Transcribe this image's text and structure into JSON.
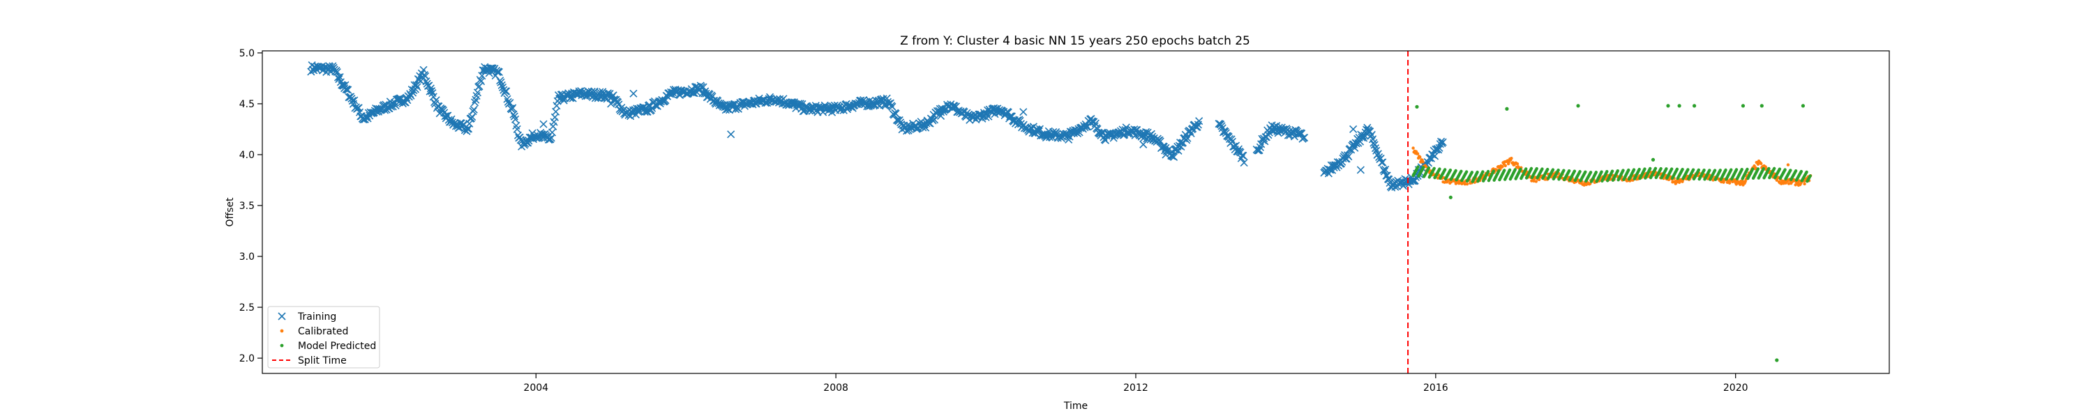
{
  "chart_data": {
    "type": "scatter",
    "title": "Z from Y: Cluster 4 basic NN 15 years 250 epochs batch 25",
    "xlabel": "Time",
    "ylabel": "Offset",
    "xlim": [
      2000.35,
      2022.05
    ],
    "ylim": [
      1.85,
      5.02
    ],
    "x_ticks": [
      2004,
      2008,
      2012,
      2016,
      2020
    ],
    "x_tick_labels": [
      "2004",
      "2008",
      "2012",
      "2016",
      "2020"
    ],
    "y_ticks": [
      2.0,
      2.5,
      3.0,
      3.5,
      4.0,
      4.5,
      5.0
    ],
    "y_tick_labels": [
      "2.0",
      "2.5",
      "3.0",
      "3.5",
      "4.0",
      "4.5",
      "5.0"
    ],
    "grid": false,
    "legend_position": "lower-left",
    "split_time": 2015.63,
    "series": [
      {
        "name": "Training",
        "marker": "x",
        "color": "#1f77b4",
        "trend": [
          [
            2001.0,
            4.85
          ],
          [
            2001.3,
            4.84
          ],
          [
            2001.5,
            4.6
          ],
          [
            2001.7,
            4.35
          ],
          [
            2001.9,
            4.44
          ],
          [
            2002.3,
            4.56
          ],
          [
            2002.5,
            4.8
          ],
          [
            2002.7,
            4.45
          ],
          [
            2002.9,
            4.3
          ],
          [
            2003.1,
            4.25
          ],
          [
            2003.3,
            4.85
          ],
          [
            2003.5,
            4.8
          ],
          [
            2003.7,
            4.4
          ],
          [
            2003.8,
            4.1
          ],
          [
            2004.0,
            4.2
          ],
          [
            2004.2,
            4.15
          ],
          [
            2004.3,
            4.55
          ],
          [
            2004.6,
            4.6
          ],
          [
            2005.0,
            4.58
          ],
          [
            2005.2,
            4.4
          ],
          [
            2005.5,
            4.45
          ],
          [
            2005.8,
            4.6
          ],
          [
            2006.2,
            4.65
          ],
          [
            2006.5,
            4.45
          ],
          [
            2006.8,
            4.5
          ],
          [
            2007.2,
            4.55
          ],
          [
            2007.6,
            4.45
          ],
          [
            2008.0,
            4.45
          ],
          [
            2008.3,
            4.5
          ],
          [
            2008.7,
            4.52
          ],
          [
            2008.9,
            4.25
          ],
          [
            2009.2,
            4.3
          ],
          [
            2009.5,
            4.5
          ],
          [
            2009.8,
            4.35
          ],
          [
            2010.2,
            4.45
          ],
          [
            2010.5,
            4.28
          ],
          [
            2010.8,
            4.2
          ],
          [
            2011.1,
            4.18
          ],
          [
            2011.4,
            4.33
          ],
          [
            2011.6,
            4.17
          ],
          [
            2011.9,
            4.24
          ],
          [
            2012.2,
            4.18
          ],
          [
            2012.5,
            4.0
          ],
          [
            2012.8,
            4.3
          ],
          [
            2013.1,
            4.3
          ],
          [
            2013.5,
            3.9
          ],
          [
            2013.8,
            4.26
          ],
          [
            2014.2,
            4.2
          ],
          [
            2014.5,
            3.8
          ],
          [
            2014.8,
            3.98
          ],
          [
            2015.1,
            4.25
          ],
          [
            2015.4,
            3.7
          ],
          [
            2015.7,
            3.75
          ],
          [
            2016.1,
            4.12
          ]
        ],
        "outliers": [
          [
            2004.1,
            4.3
          ],
          [
            2005.0,
            4.5
          ],
          [
            2005.3,
            4.6
          ],
          [
            2006.6,
            4.2
          ],
          [
            2009.4,
            4.38
          ],
          [
            2010.5,
            4.42
          ],
          [
            2012.1,
            4.1
          ],
          [
            2012.4,
            4.0
          ],
          [
            2014.9,
            4.25
          ],
          [
            2015.0,
            3.85
          ]
        ],
        "gaps": [
          [
            2012.85,
            2013.1
          ],
          [
            2013.45,
            2013.6
          ],
          [
            2014.25,
            2014.5
          ]
        ]
      },
      {
        "name": "Calibrated",
        "marker": "dot",
        "color": "#ff7f0e",
        "trend": [
          [
            2015.7,
            4.05
          ],
          [
            2015.9,
            3.85
          ],
          [
            2016.1,
            3.75
          ],
          [
            2016.4,
            3.72
          ],
          [
            2016.7,
            3.8
          ],
          [
            2017.0,
            3.95
          ],
          [
            2017.3,
            3.75
          ],
          [
            2017.6,
            3.8
          ],
          [
            2018.0,
            3.72
          ],
          [
            2018.3,
            3.78
          ],
          [
            2018.6,
            3.76
          ],
          [
            2018.9,
            3.82
          ],
          [
            2019.2,
            3.74
          ],
          [
            2019.5,
            3.8
          ],
          [
            2019.8,
            3.75
          ],
          [
            2020.1,
            3.72
          ],
          [
            2020.3,
            3.92
          ],
          [
            2020.6,
            3.74
          ],
          [
            2020.9,
            3.72
          ],
          [
            2021.0,
            3.78
          ]
        ],
        "outliers": [
          [
            2020.7,
            3.9
          ]
        ]
      },
      {
        "name": "Model Predicted",
        "marker": "dot",
        "color": "#2ca02c",
        "trend": [
          [
            2015.7,
            3.84
          ],
          [
            2016.5,
            3.78
          ],
          [
            2017.3,
            3.82
          ],
          [
            2018.1,
            3.78
          ],
          [
            2018.9,
            3.82
          ],
          [
            2019.7,
            3.8
          ],
          [
            2020.5,
            3.82
          ],
          [
            2021.0,
            3.78
          ]
        ],
        "outliers": [
          [
            2015.75,
            4.47
          ],
          [
            2016.2,
            3.58
          ],
          [
            2016.95,
            4.45
          ],
          [
            2017.9,
            4.48
          ],
          [
            2019.1,
            4.48
          ],
          [
            2019.25,
            4.48
          ],
          [
            2019.45,
            4.48
          ],
          [
            2020.1,
            4.48
          ],
          [
            2020.35,
            4.48
          ],
          [
            2020.55,
            1.98
          ],
          [
            2020.9,
            4.48
          ],
          [
            2018.9,
            3.95
          ]
        ]
      },
      {
        "name": "Split Time",
        "marker": "dashed-line",
        "color": "#ff0000"
      }
    ]
  }
}
